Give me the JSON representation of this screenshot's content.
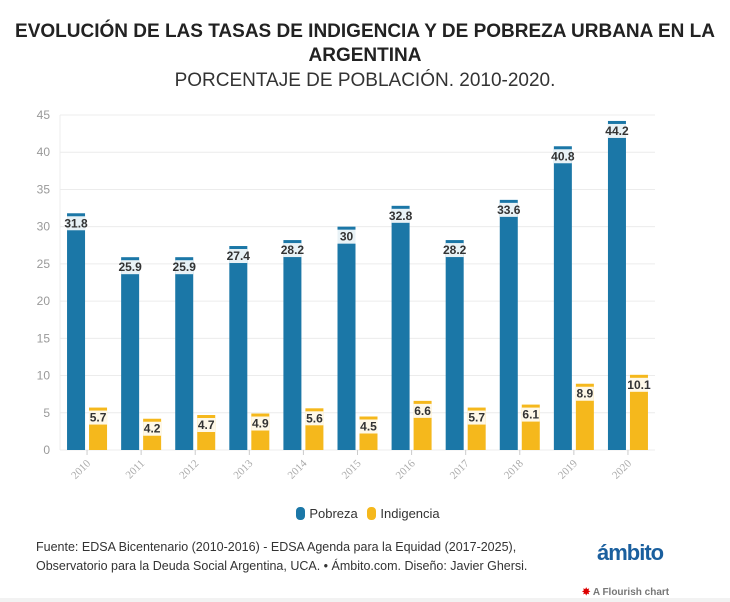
{
  "chart_data": {
    "type": "bar",
    "title": "EVOLUCIÓN DE LAS TASAS DE INDIGENCIA Y DE POBREZA URBANA EN LA ARGENTINA",
    "subtitle": "PORCENTAJE DE POBLACIÓN. 2010-2020.",
    "categories": [
      "2010",
      "2011",
      "2012",
      "2013",
      "2014",
      "2015",
      "2016",
      "2017",
      "2018",
      "2019",
      "2020"
    ],
    "series": [
      {
        "name": "Pobreza",
        "color": "#1b77a7",
        "values": [
          31.8,
          25.9,
          25.9,
          27.4,
          28.2,
          30,
          32.8,
          28.2,
          33.6,
          40.8,
          44.2
        ]
      },
      {
        "name": "Indigencia",
        "color": "#f5b81c",
        "values": [
          5.7,
          4.2,
          4.7,
          4.9,
          5.6,
          4.5,
          6.6,
          5.7,
          6.1,
          8.9,
          10.1
        ]
      }
    ],
    "ylim": [
      0,
      45
    ],
    "yticks": [
      0,
      5,
      10,
      15,
      20,
      25,
      30,
      35,
      40,
      45
    ],
    "grid": true,
    "legend": "bottom"
  },
  "source": {
    "line1": "Fuente: EDSA Bicentenario (2010-2016) - EDSA Agenda para la Equidad (2017-2025),",
    "line2": "Observatorio para la Deuda Social Argentina, UCA. • Ámbito.com. Diseño: Javier Ghersi."
  },
  "logo": "ámbito",
  "flourish": "A Flourish chart"
}
